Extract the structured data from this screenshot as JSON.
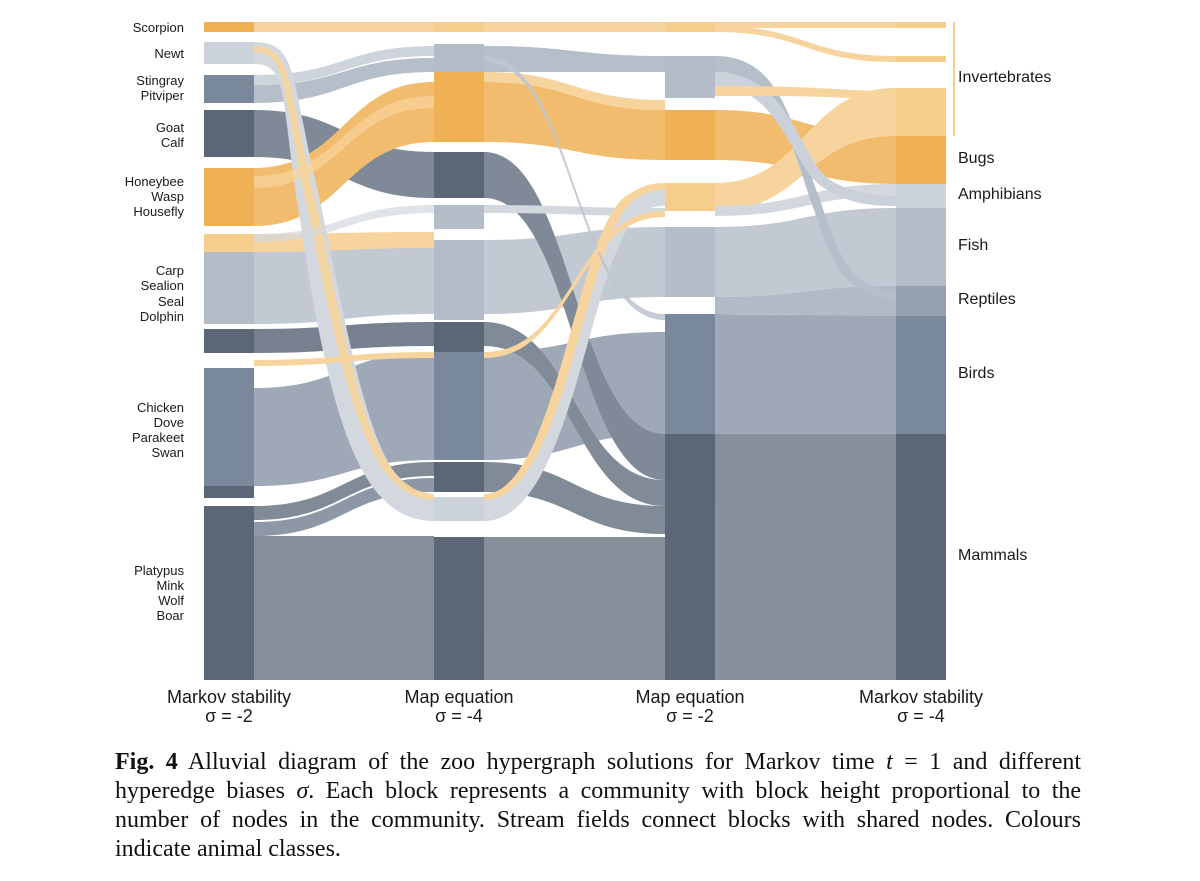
{
  "figure": {
    "left_labels": [
      [
        "Scorpion"
      ],
      [
        "Newt"
      ],
      [
        "Stingray",
        "Pitviper"
      ],
      [
        "Goat",
        "Calf"
      ],
      [
        "Honeybee",
        "Wasp",
        "Housefly"
      ],
      [
        "Carp",
        "Sealion",
        "Seal",
        "Dolphin"
      ],
      [
        "Chicken",
        "Dove",
        "Parakeet",
        "Swan"
      ],
      [
        "Platypus",
        "Mink",
        "Wolf",
        "Boar"
      ]
    ],
    "right_labels": [
      "Invertebrates",
      "Bugs",
      "Amphibians",
      "Fish",
      "Reptiles",
      "Birds",
      "Mammals"
    ],
    "columns": [
      {
        "name": "Markov stability",
        "sigma": "σ = -2"
      },
      {
        "name": "Map equation",
        "sigma": "σ = -4"
      },
      {
        "name": "Map equation",
        "sigma": "σ = -2"
      },
      {
        "name": "Markov stability",
        "sigma": "σ = -4"
      }
    ],
    "colors": {
      "orange": "#f0b155",
      "orange_light": "#f6cd8d",
      "slate_dark": "#5b6677",
      "slate_mid": "#7a889c",
      "slate_light": "#b4bcc8",
      "slate_lighter": "#ccd2da"
    }
  },
  "caption": {
    "fig_label": "Fig. 4",
    "t_part1": "Alluvial diagram of the zoo hypergraph solutions for Markov time",
    "t_var": "t",
    "t_part2": "= 1 and different hyperedge biases",
    "sigma_var": "σ",
    "t_part3": ". Each block represents a community with block height proportional to the number of nodes in the community. Stream fields connect blocks with shared nodes. Colours indicate animal classes."
  }
}
